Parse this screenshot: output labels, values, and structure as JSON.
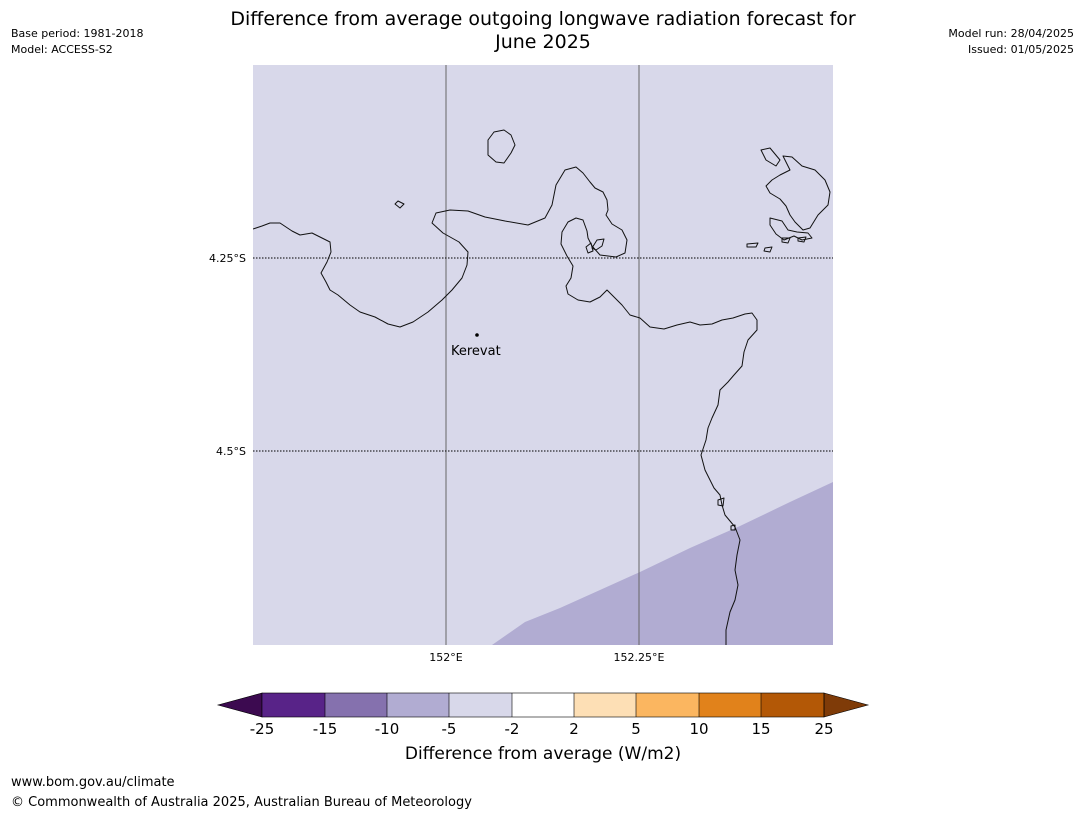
{
  "header": {
    "base_period": "Base period: 1981-2018",
    "model": "Model: ACCESS-S2",
    "model_run": "Model run: 28/04/2025",
    "issued": "Issued: 01/05/2025",
    "title_line1": "Difference from average outgoing longwave radiation forecast for",
    "title_line2": "June 2025"
  },
  "map": {
    "background_color": "#d8d8ea",
    "anomaly_color": "#b1acd2",
    "place_label": "Kerevat",
    "lat_labels": [
      "4.25°S",
      "4.5°S"
    ],
    "lon_labels": [
      "152°E",
      "152.25°E"
    ]
  },
  "colorbar": {
    "title": "Difference from average (W/m2)",
    "ticks": [
      "-25",
      "-15",
      "-10",
      "-5",
      "-2",
      "2",
      "5",
      "10",
      "15",
      "25"
    ],
    "colors": [
      "#3c0a50",
      "#582388",
      "#8571ae",
      "#b1acd2",
      "#d8d8ea",
      "#ffffff",
      "#fddfb5",
      "#fbb660",
      "#e1821b",
      "#b35806",
      "#7f3b08"
    ]
  },
  "footer": {
    "url": "www.bom.gov.au/climate",
    "copyright": "© Commonwealth of Australia 2025, Australian Bureau of Meteorology"
  }
}
